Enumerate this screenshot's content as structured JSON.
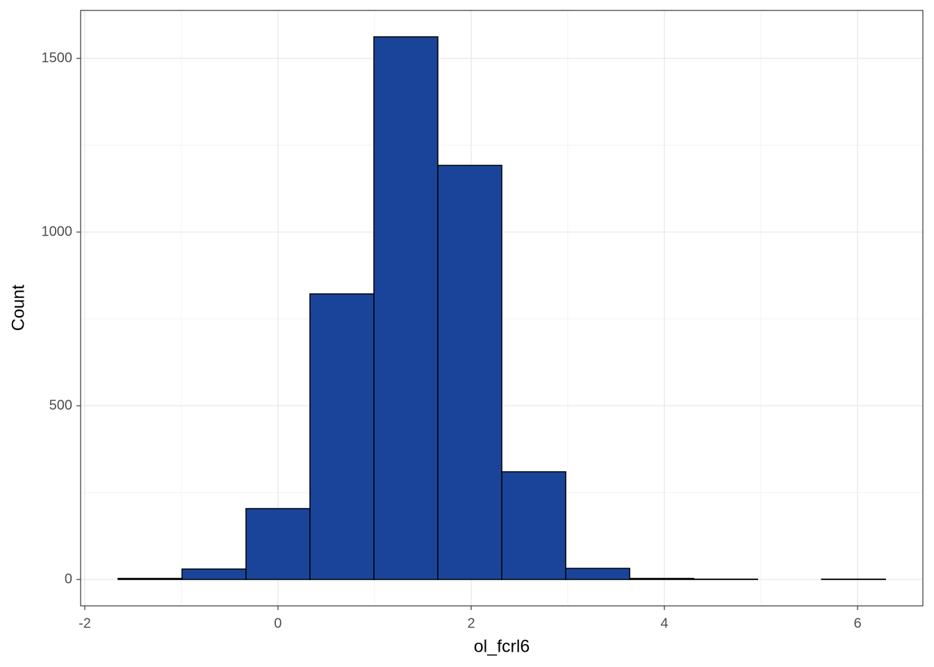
{
  "chart_data": {
    "type": "histogram",
    "x_label": "ol_fcrl6",
    "y_label": "Count",
    "bins": [
      -1.655,
      -0.993,
      -0.331,
      0.331,
      0.993,
      1.655,
      2.317,
      2.979,
      3.641,
      4.303,
      4.965,
      5.627,
      6.289
    ],
    "counts": [
      3,
      30,
      204,
      822,
      1562,
      1192,
      310,
      32,
      3,
      1,
      0,
      1
    ],
    "color": "#1a4499",
    "edge_color": "#000000",
    "xlim": [
      -2.043,
      6.676
    ],
    "xticks": [
      -2,
      0,
      2,
      4,
      6
    ],
    "x_minor_ticks": [
      -1,
      1,
      3,
      5
    ],
    "ylim": [
      -76,
      1638
    ],
    "yticks": [
      0,
      500,
      1000,
      1500
    ],
    "y_minor_ticks": [
      250,
      750,
      1250
    ],
    "grid": true
  }
}
